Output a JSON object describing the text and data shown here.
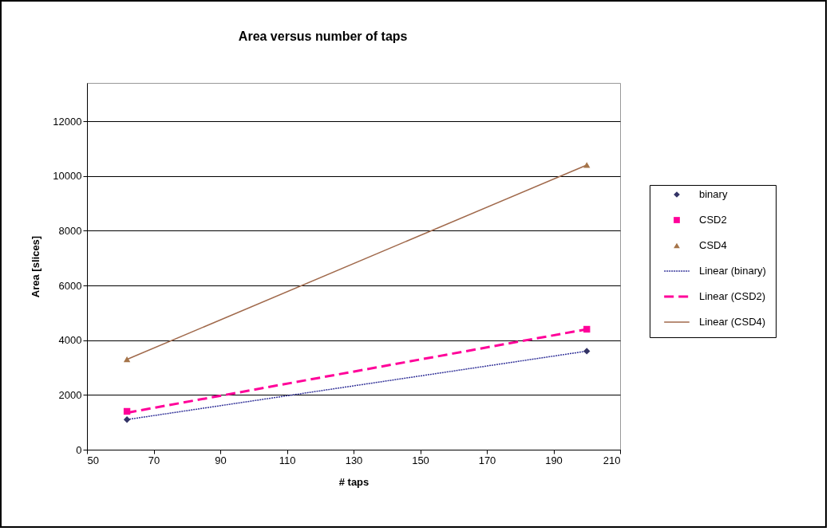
{
  "chart_data": {
    "type": "scatter",
    "title": "Area versus number of taps",
    "xlabel": "# taps",
    "ylabel": "Area [slices]",
    "xlim": [
      50,
      210
    ],
    "xticks": [
      50,
      70,
      90,
      110,
      130,
      150,
      170,
      190,
      210
    ],
    "ylim": [
      0,
      13400
    ],
    "yticks": [
      0,
      2000,
      4000,
      6000,
      8000,
      10000,
      12000
    ],
    "grid": "y",
    "legend": "right",
    "x": [
      62,
      200
    ],
    "series": [
      {
        "name": "binary",
        "type": "scatter",
        "marker": "diamond",
        "color": "#333366",
        "values": [
          1100,
          3600
        ]
      },
      {
        "name": "CSD2",
        "type": "scatter",
        "marker": "square",
        "color": "#ff0099",
        "values": [
          1400,
          4400
        ]
      },
      {
        "name": "CSD4",
        "type": "scatter",
        "marker": "triangle",
        "color": "#a57449",
        "values": [
          3300,
          10400
        ]
      },
      {
        "name": "Linear (binary)",
        "type": "line",
        "line_style": "dotted",
        "color": "#333399",
        "values": [
          1100,
          3600
        ]
      },
      {
        "name": "Linear (CSD2)",
        "type": "line",
        "line_style": "dashed",
        "color": "#ff0099",
        "values": [
          1350,
          4400
        ]
      },
      {
        "name": "Linear (CSD4)",
        "type": "line",
        "line_style": "solid",
        "color": "#a0694b",
        "values": [
          3300,
          10400
        ]
      }
    ]
  }
}
